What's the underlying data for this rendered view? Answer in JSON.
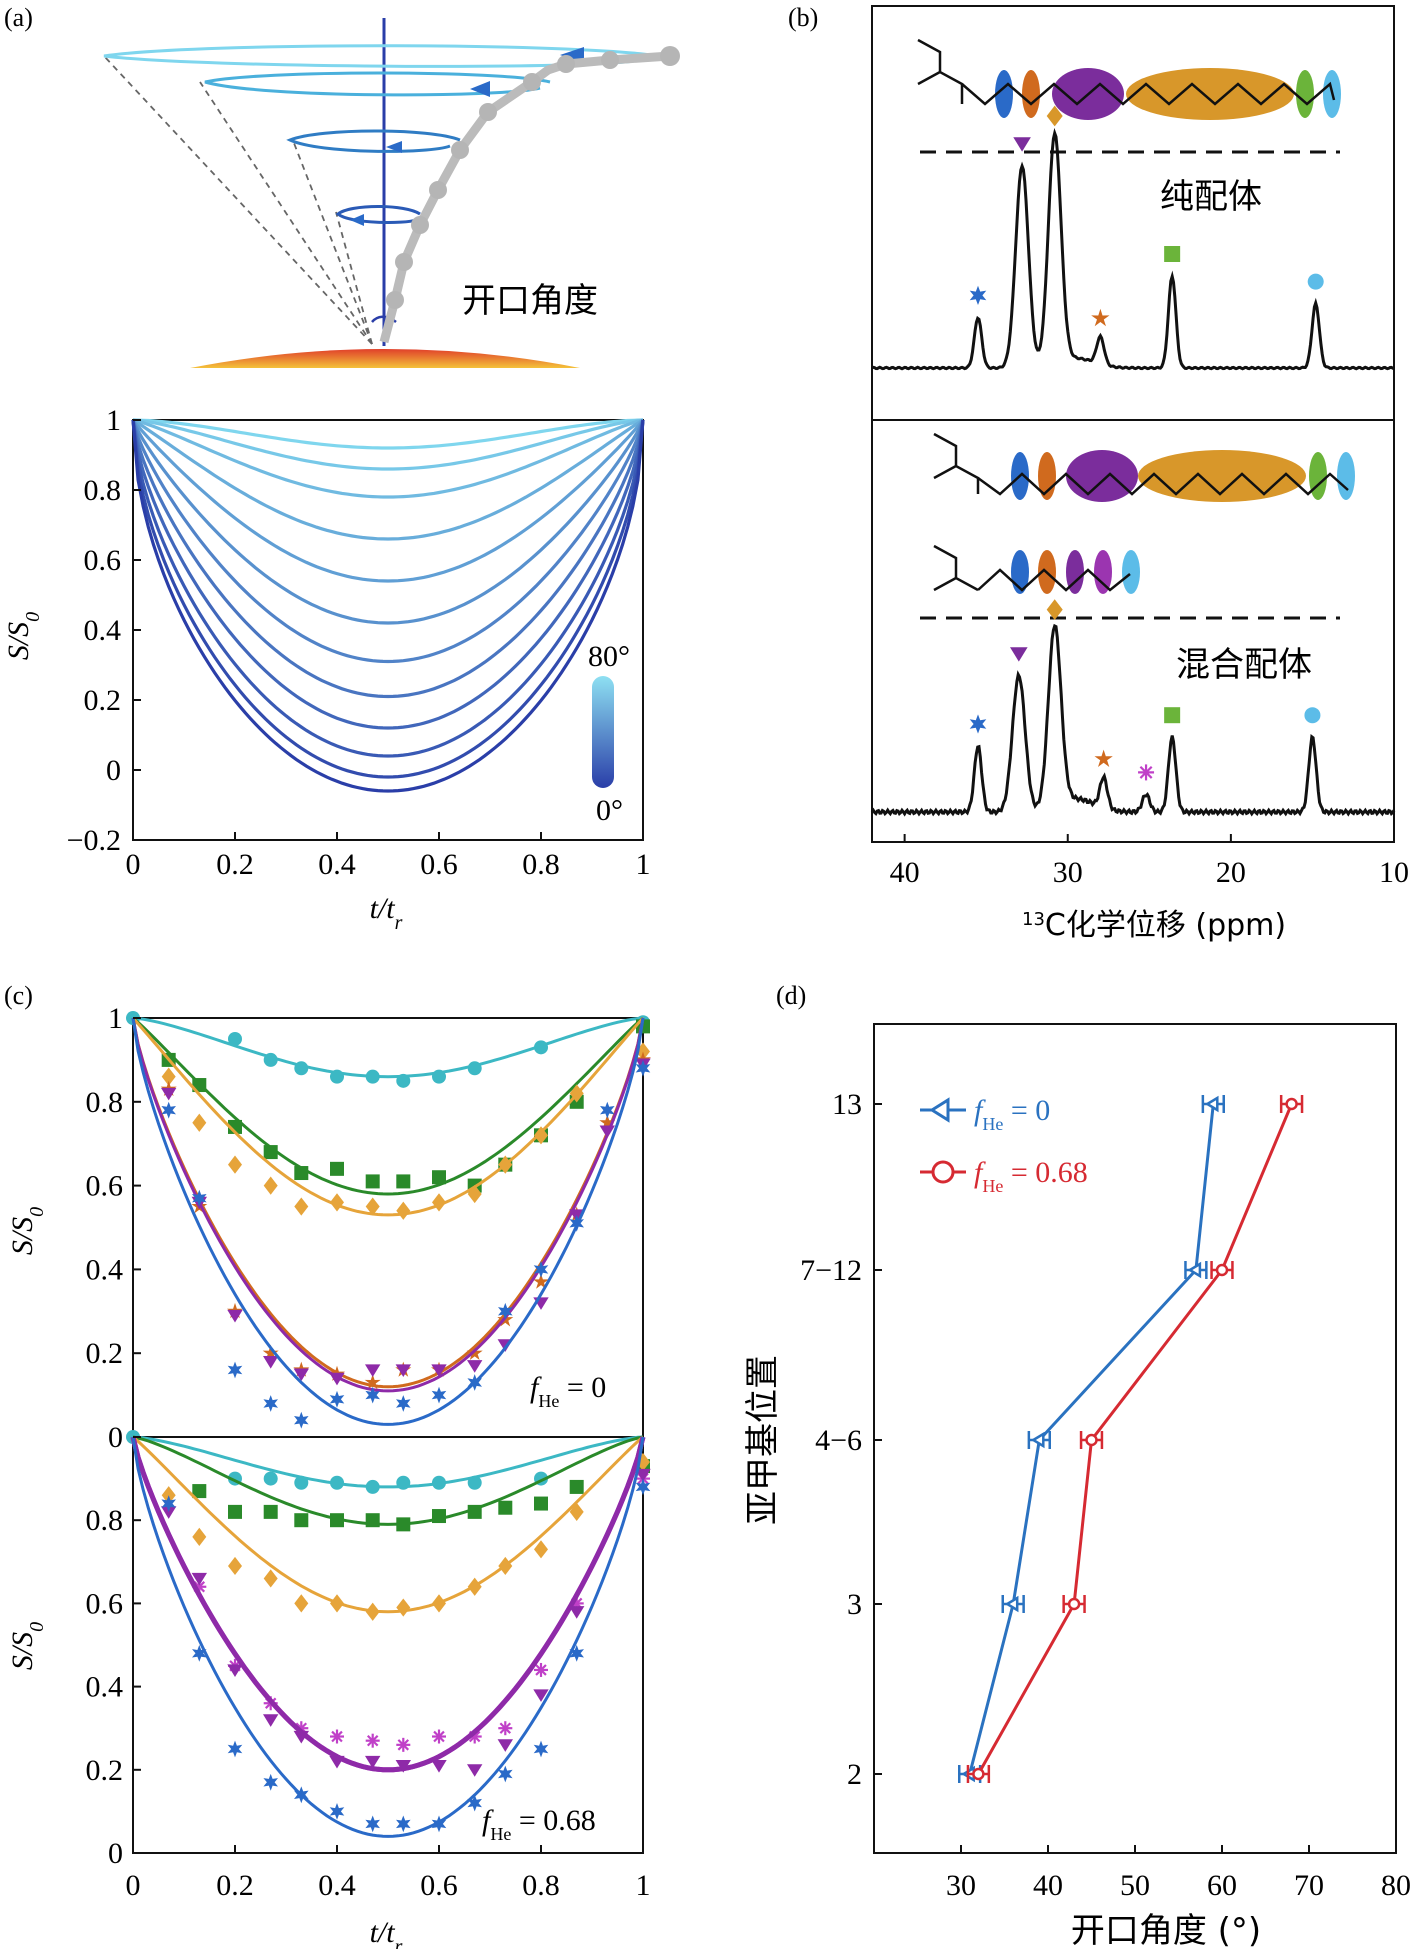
{
  "panel_labels": [
    "(a)",
    "(b)",
    "(c)",
    "(d)"
  ],
  "colors": {
    "black": "#111111",
    "light_cyan": "#7fd6ee",
    "dark_blue": "#2a3ea8",
    "cyan": "#3cb8c4",
    "green": "#2a8a2a",
    "orange": "#e6a43a",
    "purple": "#8e2aa8",
    "blue": "#2a6ac8",
    "red": "#d62a32",
    "d_blue": "#2a72c0",
    "lime": "#6bb43a",
    "sky": "#5cbce8",
    "amber": "#d8972a",
    "violet": "#7b2d9c",
    "star_orange": "#d06a1e",
    "magenta": "#c040c8"
  },
  "panel_a": {
    "label": "开口角度",
    "colorbar_max": "80°",
    "colorbar_min": "0°"
  },
  "panel_b": {
    "pure_label": "纯配体",
    "mixed_label": "混合配体",
    "xlabel_prefix": "13",
    "xlabel_main": "C化学位移 (ppm)"
  },
  "panel_c": {
    "legend_top": "f",
    "legend_top_sub": "He",
    "legend_top_val": " = 0",
    "legend_bot": "f",
    "legend_bot_sub": "He",
    "legend_bot_val": " = 0.68"
  },
  "panel_d": {
    "ylabel": "亚甲基位置",
    "xlabel": "开口角度 (°)",
    "legend": [
      {
        "f": "f",
        "sub": "He",
        "val": " = 0"
      },
      {
        "f": "f",
        "sub": "He",
        "val": " = 0.68"
      }
    ]
  },
  "chart_data": [
    {
      "id": "a-lower",
      "type": "line",
      "xlabel": "t/t",
      "xlabel_sub": "r",
      "ylabel": "S/S",
      "ylabel_sub": "0",
      "xlim": [
        0,
        1
      ],
      "ylim": [
        -0.2,
        1
      ],
      "x_ticks": [
        "0",
        "0.2",
        "0.4",
        "0.6",
        "0.8",
        "1"
      ],
      "y_ticks": [
        "−0.2",
        "0",
        "0.2",
        "0.4",
        "0.6",
        "0.8",
        "1"
      ],
      "series_minima": [
        0.92,
        0.86,
        0.78,
        0.66,
        0.54,
        0.42,
        0.31,
        0.21,
        0.12,
        0.04,
        -0.02,
        -0.06
      ],
      "colorbar_range": [
        0,
        80
      ]
    },
    {
      "id": "b-top",
      "type": "line",
      "title": "纯配体",
      "xlim": [
        42,
        10
      ],
      "peaks": [
        {
          "x": 35.5,
          "height": 0.22,
          "marker": "star6",
          "color": "#2a6ac8"
        },
        {
          "x": 32.8,
          "height": 0.88,
          "marker": "triangle",
          "color": "#7b2d9c"
        },
        {
          "x": 30.8,
          "height": 1.0,
          "marker": "diamond",
          "color": "#d8972a"
        },
        {
          "x": 28.0,
          "height": 0.12,
          "marker": "star5",
          "color": "#d06a1e"
        },
        {
          "x": 23.6,
          "height": 0.4,
          "marker": "square",
          "color": "#6bb43a"
        },
        {
          "x": 14.8,
          "height": 0.28,
          "marker": "circle",
          "color": "#5cbce8"
        }
      ]
    },
    {
      "id": "b-bottom",
      "type": "line",
      "title": "混合配体",
      "xlim": [
        42,
        10
      ],
      "x_ticks": [
        "40",
        "30",
        "20",
        "10"
      ],
      "x_tick_values": [
        40,
        30,
        20,
        10
      ],
      "peaks": [
        {
          "x": 35.5,
          "height": 0.3,
          "marker": "star6",
          "color": "#2a6ac8"
        },
        {
          "x": 33.0,
          "height": 0.62,
          "marker": "triangle",
          "color": "#7b2d9c"
        },
        {
          "x": 30.8,
          "height": 0.82,
          "marker": "diamond",
          "color": "#d8972a"
        },
        {
          "x": 27.8,
          "height": 0.14,
          "marker": "star5",
          "color": "#d06a1e"
        },
        {
          "x": 25.2,
          "height": 0.08,
          "marker": "asterisk",
          "color": "#c040c8"
        },
        {
          "x": 23.6,
          "height": 0.34,
          "marker": "square",
          "color": "#6bb43a"
        },
        {
          "x": 15.0,
          "height": 0.34,
          "marker": "circle",
          "color": "#5cbce8"
        }
      ]
    },
    {
      "id": "c-top",
      "type": "scatter",
      "ylabel": "S/S",
      "ylabel_sub": "0",
      "xlim": [
        0,
        1
      ],
      "ylim": [
        0,
        1
      ],
      "y_ticks": [
        "0",
        "0.2",
        "0.4",
        "0.6",
        "0.8",
        "1"
      ],
      "series": [
        {
          "color": "#3cb8c4",
          "marker": "circle",
          "fit_min": 0.86,
          "points": [
            [
              0,
              1.0
            ],
            [
              0.2,
              0.95
            ],
            [
              0.27,
              0.9
            ],
            [
              0.33,
              0.88
            ],
            [
              0.4,
              0.86
            ],
            [
              0.47,
              0.86
            ],
            [
              0.53,
              0.85
            ],
            [
              0.6,
              0.86
            ],
            [
              0.67,
              0.88
            ],
            [
              0.8,
              0.93
            ],
            [
              1,
              0.99
            ]
          ]
        },
        {
          "color": "#2a8a2a",
          "marker": "square",
          "fit_min": 0.58,
          "points": [
            [
              0.07,
              0.9
            ],
            [
              0.13,
              0.84
            ],
            [
              0.2,
              0.74
            ],
            [
              0.27,
              0.68
            ],
            [
              0.33,
              0.63
            ],
            [
              0.4,
              0.64
            ],
            [
              0.47,
              0.61
            ],
            [
              0.53,
              0.61
            ],
            [
              0.6,
              0.62
            ],
            [
              0.67,
              0.6
            ],
            [
              0.73,
              0.65
            ],
            [
              0.8,
              0.72
            ],
            [
              0.87,
              0.8
            ],
            [
              1,
              0.98
            ]
          ]
        },
        {
          "color": "#e6a43a",
          "marker": "diamond",
          "fit_min": 0.53,
          "points": [
            [
              0.07,
              0.86
            ],
            [
              0.13,
              0.75
            ],
            [
              0.2,
              0.65
            ],
            [
              0.27,
              0.6
            ],
            [
              0.33,
              0.55
            ],
            [
              0.4,
              0.56
            ],
            [
              0.47,
              0.55
            ],
            [
              0.53,
              0.54
            ],
            [
              0.6,
              0.56
            ],
            [
              0.67,
              0.58
            ],
            [
              0.73,
              0.65
            ],
            [
              0.8,
              0.72
            ],
            [
              0.87,
              0.82
            ],
            [
              1,
              0.92
            ]
          ]
        },
        {
          "color": "#d06a1e",
          "marker": "star5",
          "fit_min": 0.12,
          "points": [
            [
              0.07,
              0.83
            ],
            [
              0.13,
              0.55
            ],
            [
              0.2,
              0.3
            ],
            [
              0.27,
              0.2
            ],
            [
              0.33,
              0.16
            ],
            [
              0.4,
              0.15
            ],
            [
              0.47,
              0.13
            ],
            [
              0.53,
              0.16
            ],
            [
              0.6,
              0.16
            ],
            [
              0.67,
              0.2
            ],
            [
              0.73,
              0.28
            ],
            [
              0.8,
              0.37
            ],
            [
              0.87,
              0.53
            ],
            [
              0.93,
              0.75
            ],
            [
              1,
              0.9
            ]
          ]
        },
        {
          "color": "#8e2aa8",
          "marker": "triangle",
          "fit_min": 0.11,
          "points": [
            [
              0.07,
              0.82
            ],
            [
              0.13,
              0.56
            ],
            [
              0.2,
              0.29
            ],
            [
              0.27,
              0.18
            ],
            [
              0.33,
              0.15
            ],
            [
              0.4,
              0.14
            ],
            [
              0.47,
              0.16
            ],
            [
              0.53,
              0.16
            ],
            [
              0.6,
              0.16
            ],
            [
              0.67,
              0.17
            ],
            [
              0.73,
              0.22
            ],
            [
              0.8,
              0.32
            ],
            [
              0.87,
              0.53
            ],
            [
              0.93,
              0.73
            ],
            [
              1,
              0.89
            ]
          ]
        },
        {
          "color": "#2a6ac8",
          "marker": "star6",
          "fit_min": 0.03,
          "points": [
            [
              0.07,
              0.78
            ],
            [
              0.13,
              0.57
            ],
            [
              0.2,
              0.16
            ],
            [
              0.27,
              0.08
            ],
            [
              0.33,
              0.04
            ],
            [
              0.4,
              0.09
            ],
            [
              0.47,
              0.1
            ],
            [
              0.53,
              0.08
            ],
            [
              0.6,
              0.1
            ],
            [
              0.67,
              0.13
            ],
            [
              0.73,
              0.3
            ],
            [
              0.8,
              0.4
            ],
            [
              0.87,
              0.51
            ],
            [
              0.93,
              0.78
            ],
            [
              1,
              0.88
            ]
          ]
        }
      ]
    },
    {
      "id": "c-bottom",
      "type": "scatter",
      "xlabel": "t/t",
      "xlabel_sub": "r",
      "ylabel": "S/S",
      "ylabel_sub": "0",
      "xlim": [
        0,
        1
      ],
      "ylim": [
        0,
        1
      ],
      "x_ticks": [
        "0",
        "0.2",
        "0.4",
        "0.6",
        "0.8",
        "1"
      ],
      "y_ticks": [
        "0",
        "0.2",
        "0.4",
        "0.6",
        "0.8"
      ],
      "series": [
        {
          "color": "#3cb8c4",
          "marker": "circle",
          "fit_min": 0.88,
          "points": [
            [
              0,
              1.0
            ],
            [
              0.2,
              0.9
            ],
            [
              0.27,
              0.9
            ],
            [
              0.33,
              0.89
            ],
            [
              0.4,
              0.89
            ],
            [
              0.47,
              0.88
            ],
            [
              0.53,
              0.89
            ],
            [
              0.6,
              0.89
            ],
            [
              0.67,
              0.89
            ],
            [
              0.8,
              0.9
            ],
            [
              1,
              0.93
            ]
          ]
        },
        {
          "color": "#2a8a2a",
          "marker": "square",
          "fit_min": 0.79,
          "points": [
            [
              0.13,
              0.87
            ],
            [
              0.2,
              0.82
            ],
            [
              0.27,
              0.82
            ],
            [
              0.33,
              0.8
            ],
            [
              0.4,
              0.8
            ],
            [
              0.47,
              0.8
            ],
            [
              0.53,
              0.79
            ],
            [
              0.6,
              0.81
            ],
            [
              0.67,
              0.82
            ],
            [
              0.73,
              0.83
            ],
            [
              0.8,
              0.84
            ],
            [
              0.87,
              0.88
            ],
            [
              1,
              0.93
            ]
          ]
        },
        {
          "color": "#e6a43a",
          "marker": "diamond",
          "fit_min": 0.58,
          "points": [
            [
              0.07,
              0.86
            ],
            [
              0.13,
              0.76
            ],
            [
              0.2,
              0.69
            ],
            [
              0.27,
              0.66
            ],
            [
              0.33,
              0.6
            ],
            [
              0.4,
              0.6
            ],
            [
              0.47,
              0.58
            ],
            [
              0.53,
              0.59
            ],
            [
              0.6,
              0.6
            ],
            [
              0.67,
              0.64
            ],
            [
              0.73,
              0.69
            ],
            [
              0.8,
              0.73
            ],
            [
              0.87,
              0.82
            ],
            [
              1,
              0.94
            ]
          ]
        },
        {
          "color": "#c040c8",
          "marker": "asterisk",
          "fit_min": 0.2,
          "points": [
            [
              0.13,
              0.64
            ],
            [
              0.2,
              0.45
            ],
            [
              0.27,
              0.36
            ],
            [
              0.33,
              0.3
            ],
            [
              0.4,
              0.28
            ],
            [
              0.47,
              0.27
            ],
            [
              0.53,
              0.26
            ],
            [
              0.6,
              0.28
            ],
            [
              0.67,
              0.28
            ],
            [
              0.73,
              0.3
            ],
            [
              0.8,
              0.44
            ],
            [
              0.87,
              0.6
            ],
            [
              1,
              0.9
            ]
          ]
        },
        {
          "color": "#8e2aa8",
          "marker": "triangle",
          "fit_min": 0.2,
          "points": [
            [
              0.07,
              0.82
            ],
            [
              0.13,
              0.66
            ],
            [
              0.2,
              0.44
            ],
            [
              0.27,
              0.32
            ],
            [
              0.33,
              0.28
            ],
            [
              0.4,
              0.22
            ],
            [
              0.47,
              0.22
            ],
            [
              0.53,
              0.21
            ],
            [
              0.6,
              0.21
            ],
            [
              0.67,
              0.2
            ],
            [
              0.73,
              0.26
            ],
            [
              0.8,
              0.38
            ],
            [
              0.87,
              0.58
            ],
            [
              1,
              0.91
            ]
          ]
        },
        {
          "color": "#2a6ac8",
          "marker": "star6",
          "fit_min": 0.04,
          "points": [
            [
              0.07,
              0.84
            ],
            [
              0.13,
              0.48
            ],
            [
              0.2,
              0.25
            ],
            [
              0.27,
              0.17
            ],
            [
              0.33,
              0.14
            ],
            [
              0.4,
              0.1
            ],
            [
              0.47,
              0.07
            ],
            [
              0.53,
              0.07
            ],
            [
              0.6,
              0.07
            ],
            [
              0.67,
              0.12
            ],
            [
              0.73,
              0.19
            ],
            [
              0.8,
              0.25
            ],
            [
              0.87,
              0.48
            ],
            [
              1,
              0.88
            ]
          ]
        }
      ]
    },
    {
      "id": "d",
      "type": "line",
      "xlabel": "开口角度 (°)",
      "ylabel": "亚甲基位置",
      "xlim": [
        20,
        80
      ],
      "x_ticks": [
        "30",
        "40",
        "50",
        "60",
        "70",
        "80"
      ],
      "x_tick_values": [
        30,
        40,
        50,
        60,
        70,
        80
      ],
      "categories": [
        "2",
        "3",
        "4−6",
        "7−12",
        "13"
      ],
      "series": [
        {
          "name": "f_He = 0",
          "color": "#2a72c0",
          "marker": "triangle-left",
          "values": [
            31,
            36,
            39,
            57,
            59
          ],
          "errors": [
            1.2,
            1.2,
            1.2,
            1.2,
            1.2
          ]
        },
        {
          "name": "f_He = 0.68",
          "color": "#d62a32",
          "marker": "circle",
          "values": [
            32,
            43,
            45,
            60,
            68
          ],
          "errors": [
            1.2,
            1.2,
            1.2,
            1.2,
            1.2
          ]
        }
      ]
    }
  ]
}
